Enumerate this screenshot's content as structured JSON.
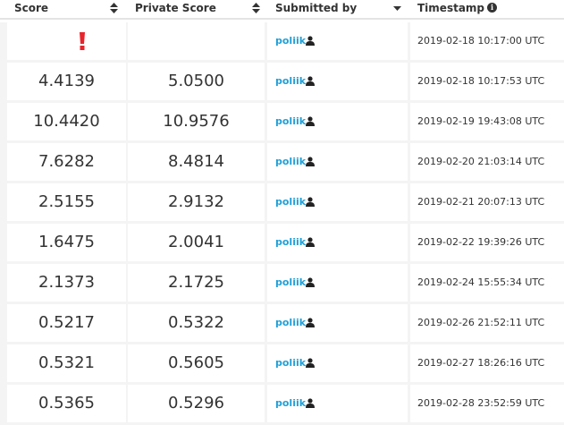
{
  "header": {
    "score": "Score",
    "private_score": "Private Score",
    "submitted_by": "Submitted by",
    "timestamp": "Timestamp",
    "info_glyph": "i"
  },
  "colors": {
    "link": "#20a0d8",
    "error": "#e8232b",
    "row_alt": "#f4f4f4",
    "text": "#333333"
  },
  "rows": [
    {
      "score": "",
      "private_score": "",
      "user": "poliik",
      "timestamp": "2019-02-18 10:17:00 UTC",
      "status_icon": "exclamation-icon"
    },
    {
      "score": "4.4139",
      "private_score": "5.0500",
      "user": "poliik",
      "timestamp": "2019-02-18 10:17:53 UTC"
    },
    {
      "score": "10.4420",
      "private_score": "10.9576",
      "user": "poliik",
      "timestamp": "2019-02-19 19:43:08 UTC"
    },
    {
      "score": "7.6282",
      "private_score": "8.4814",
      "user": "poliik",
      "timestamp": "2019-02-20 21:03:14 UTC"
    },
    {
      "score": "2.5155",
      "private_score": "2.9132",
      "user": "poliik",
      "timestamp": "2019-02-21 20:07:13 UTC"
    },
    {
      "score": "1.6475",
      "private_score": "2.0041",
      "user": "poliik",
      "timestamp": "2019-02-22 19:39:26 UTC"
    },
    {
      "score": "2.1373",
      "private_score": "2.1725",
      "user": "poliik",
      "timestamp": "2019-02-24 15:55:34 UTC"
    },
    {
      "score": "0.5217",
      "private_score": "0.5322",
      "user": "poliik",
      "timestamp": "2019-02-26 21:52:11 UTC"
    },
    {
      "score": "0.5321",
      "private_score": "0.5605",
      "user": "poliik",
      "timestamp": "2019-02-27 18:26:16 UTC"
    },
    {
      "score": "0.5365",
      "private_score": "0.5296",
      "user": "poliik",
      "timestamp": "2019-02-28 23:52:59 UTC"
    }
  ]
}
